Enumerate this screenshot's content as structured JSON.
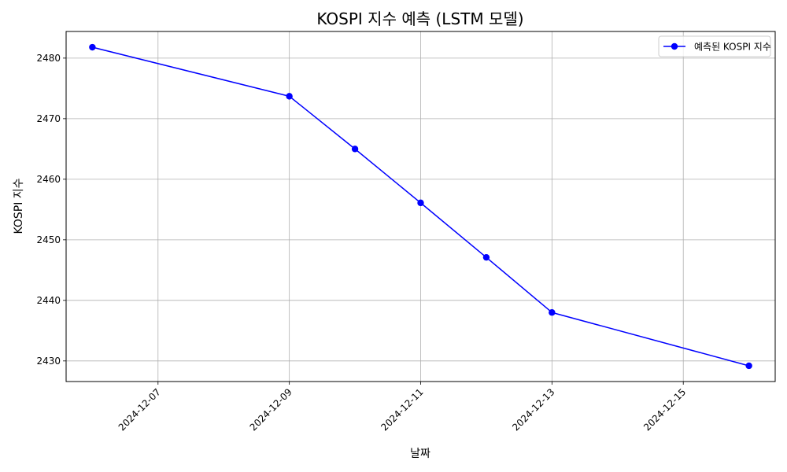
{
  "chart_data": {
    "type": "line",
    "title": "KOSPI 지수 예측 (LSTM 모델)",
    "xlabel": "날짜",
    "ylabel": "KOSPI 지수",
    "x": [
      "2024-12-06",
      "2024-12-09",
      "2024-12-10",
      "2024-12-11",
      "2024-12-12",
      "2024-12-13",
      "2024-12-16"
    ],
    "series": [
      {
        "name": "예측된 KOSPI 지수",
        "color": "#0000ff",
        "marker": "circle",
        "values": [
          2481.8,
          2473.7,
          2465.0,
          2456.1,
          2447.1,
          2438.0,
          2429.2
        ]
      }
    ],
    "xticks": [
      "2024-12-07",
      "2024-12-09",
      "2024-12-11",
      "2024-12-13",
      "2024-12-15"
    ],
    "yticks": [
      2430,
      2440,
      2450,
      2460,
      2470,
      2480
    ],
    "xlim": [
      "2024-12-05 14:24",
      "2024-12-16 09:36"
    ],
    "ylim": [
      2426.6,
      2484.4
    ],
    "grid": true,
    "legend_position": "top-right"
  }
}
